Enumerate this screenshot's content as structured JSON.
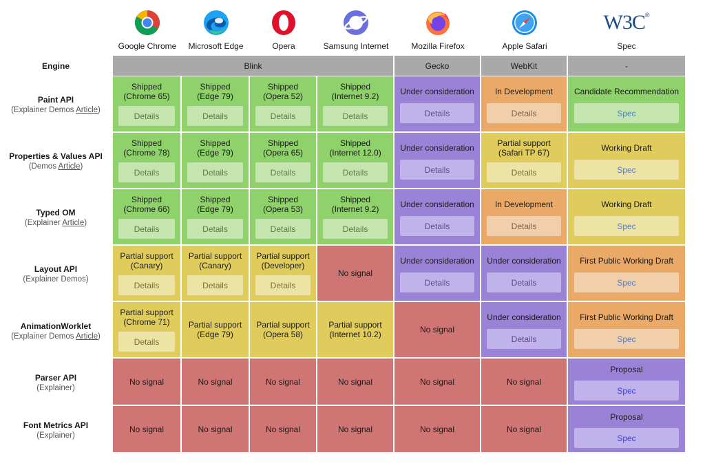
{
  "browsers": [
    {
      "name": "Google Chrome",
      "icon": "chrome-icon"
    },
    {
      "name": "Microsoft Edge",
      "icon": "edge-icon"
    },
    {
      "name": "Opera",
      "icon": "opera-icon"
    },
    {
      "name": "Samsung Internet",
      "icon": "samsung-internet-icon"
    },
    {
      "name": "Mozilla Firefox",
      "icon": "firefox-icon"
    },
    {
      "name": "Apple Safari",
      "icon": "safari-icon"
    },
    {
      "name": "Spec",
      "icon": "w3c-icon"
    }
  ],
  "w3c_logo_text": "W3C",
  "engine_row": {
    "label": "Engine",
    "engines": [
      "Blink",
      "Gecko",
      "WebKit",
      "-"
    ]
  },
  "details_label": "Details",
  "spec_label": "Spec",
  "colors": {
    "shipped": "#8fd16a",
    "partial": "#e0cc5c",
    "consideration": "#9a82d6",
    "development": "#eba967",
    "no_signal": "#cf7574",
    "engine_header": "#a9a9a9"
  },
  "rows": [
    {
      "name": "Paint API",
      "sub_prefix": "(Explainer Demos ",
      "sub_link": "Article",
      "sub_suffix": ")",
      "cells": [
        {
          "l1": "Shipped",
          "l2": "(Chrome 65)"
        },
        {
          "l1": "Shipped",
          "l2": "(Edge 79)"
        },
        {
          "l1": "Shipped",
          "l2": "(Opera 52)"
        },
        {
          "l1": "Shipped",
          "l2": "(Internet 9.2)"
        },
        {
          "l1": "Under consideration",
          "l2": ""
        },
        {
          "l1": "In Development",
          "l2": ""
        },
        {
          "l1": "Candidate Recommendation",
          "l2": ""
        }
      ]
    },
    {
      "name": "Properties & Values API",
      "sub_prefix": "(Demos ",
      "sub_link": "Article",
      "sub_suffix": ")",
      "cells": [
        {
          "l1": "Shipped",
          "l2": "(Chrome 78)"
        },
        {
          "l1": "Shipped",
          "l2": "(Edge 79)"
        },
        {
          "l1": "Shipped",
          "l2": "(Opera 65)"
        },
        {
          "l1": "Shipped",
          "l2": "(Internet 12.0)"
        },
        {
          "l1": "Under consideration",
          "l2": ""
        },
        {
          "l1": "Partial support",
          "l2": "(Safari TP 67)"
        },
        {
          "l1": "Working Draft",
          "l2": ""
        }
      ]
    },
    {
      "name": "Typed OM",
      "sub_prefix": "(Explainer ",
      "sub_link": "Article",
      "sub_suffix": ")",
      "cells": [
        {
          "l1": "Shipped",
          "l2": "(Chrome 66)"
        },
        {
          "l1": "Shipped",
          "l2": "(Edge 79)"
        },
        {
          "l1": "Shipped",
          "l2": "(Opera 53)"
        },
        {
          "l1": "Shipped",
          "l2": "(Internet 9.2)"
        },
        {
          "l1": "Under consideration",
          "l2": ""
        },
        {
          "l1": "In Development",
          "l2": ""
        },
        {
          "l1": "Working Draft",
          "l2": ""
        }
      ]
    },
    {
      "name": "Layout API",
      "sub_prefix": "(Explainer Demos)",
      "sub_link": "",
      "sub_suffix": "",
      "cells": [
        {
          "l1": "Partial support",
          "l2": "(Canary)"
        },
        {
          "l1": "Partial support",
          "l2": "(Canary)"
        },
        {
          "l1": "Partial support",
          "l2": "(Developer)"
        },
        {
          "l1": "No signal",
          "l2": ""
        },
        {
          "l1": "Under consideration",
          "l2": ""
        },
        {
          "l1": "Under consideration",
          "l2": ""
        },
        {
          "l1": "First Public Working Draft",
          "l2": ""
        }
      ]
    },
    {
      "name": "AnimationWorklet",
      "sub_prefix": "(Explainer Demos ",
      "sub_link": "Article",
      "sub_suffix": ")",
      "cells": [
        {
          "l1": "Partial support",
          "l2": "(Chrome 71)"
        },
        {
          "l1": "Partial support",
          "l2": "(Edge 79)"
        },
        {
          "l1": "Partial support",
          "l2": "(Opera 58)"
        },
        {
          "l1": "Partial support",
          "l2": "(Internet 10.2)"
        },
        {
          "l1": "No signal",
          "l2": ""
        },
        {
          "l1": "Under consideration",
          "l2": ""
        },
        {
          "l1": "First Public Working Draft",
          "l2": ""
        }
      ]
    },
    {
      "name": "Parser API",
      "sub_prefix": "(Explainer)",
      "sub_link": "",
      "sub_suffix": "",
      "cells": [
        {
          "l1": "No signal",
          "l2": ""
        },
        {
          "l1": "No signal",
          "l2": ""
        },
        {
          "l1": "No signal",
          "l2": ""
        },
        {
          "l1": "No signal",
          "l2": ""
        },
        {
          "l1": "No signal",
          "l2": ""
        },
        {
          "l1": "No signal",
          "l2": ""
        },
        {
          "l1": "Proposal",
          "l2": ""
        }
      ]
    },
    {
      "name": "Font Metrics API",
      "sub_prefix": "(Explainer)",
      "sub_link": "",
      "sub_suffix": "",
      "cells": [
        {
          "l1": "No signal",
          "l2": ""
        },
        {
          "l1": "No signal",
          "l2": ""
        },
        {
          "l1": "No signal",
          "l2": ""
        },
        {
          "l1": "No signal",
          "l2": ""
        },
        {
          "l1": "No signal",
          "l2": ""
        },
        {
          "l1": "No signal",
          "l2": ""
        },
        {
          "l1": "Proposal",
          "l2": ""
        }
      ]
    }
  ]
}
